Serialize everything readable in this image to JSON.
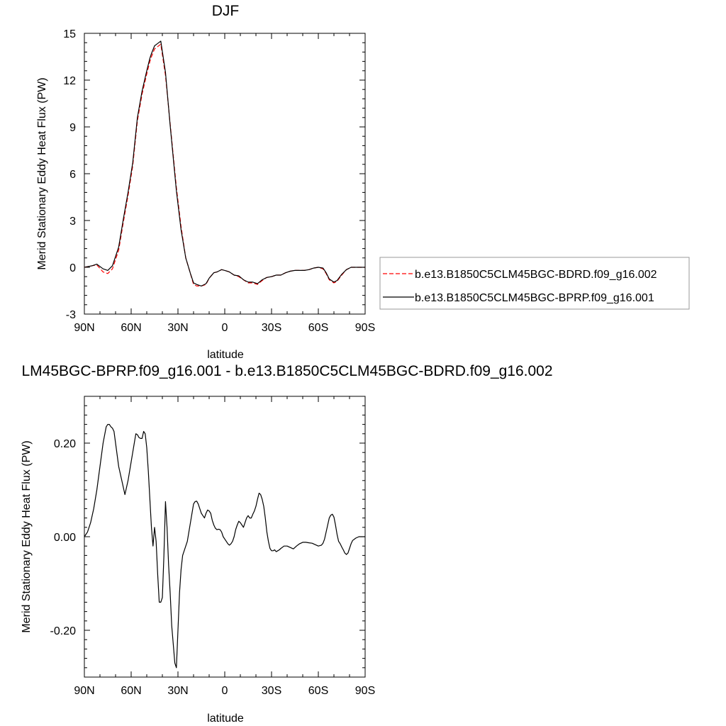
{
  "chart_data": [
    {
      "type": "line",
      "title": "DJF",
      "xlabel": "latitude",
      "ylabel": "Merid Stationary Eddy Heat Flux (PW)",
      "xlim": [
        90,
        -90
      ],
      "ylim": [
        -3,
        15
      ],
      "xticks": [
        90,
        60,
        30,
        0,
        -30,
        -60,
        -90
      ],
      "xtick_labels": [
        "90N",
        "60N",
        "30N",
        "0",
        "30S",
        "60S",
        "90S"
      ],
      "yticks": [
        -3,
        0,
        3,
        6,
        9,
        12,
        15
      ],
      "ytick_labels": [
        "-3",
        "0",
        "3",
        "6",
        "9",
        "12",
        "15"
      ],
      "legend_position": "right",
      "series": [
        {
          "name": "b.e13.B1850C5CLM45BGC-BDRD.f09_g16.002",
          "color": "#ff0000",
          "dash": "dashed",
          "x": [
            90,
            85,
            82,
            78,
            75,
            72,
            68,
            65,
            62,
            59,
            56,
            53,
            50,
            48,
            47,
            45,
            43,
            41,
            38,
            35,
            31,
            28,
            25,
            22,
            20,
            18,
            15,
            12,
            10,
            7,
            5,
            2,
            0,
            -3,
            -6,
            -9,
            -12,
            -15,
            -18,
            -21,
            -24,
            -27,
            -30,
            -33,
            -36,
            -39,
            -42,
            -45,
            -48,
            -51,
            -54,
            -57,
            -60,
            -63,
            -65,
            -67,
            -70,
            -72,
            -75,
            -78,
            -81,
            -85,
            -90
          ],
          "y": [
            0.0,
            0.1,
            0.15,
            -0.3,
            -0.4,
            -0.1,
            1.1,
            2.9,
            4.6,
            6.5,
            9.4,
            11.1,
            12.4,
            13.2,
            13.5,
            14.0,
            14.15,
            14.3,
            12.3,
            9.2,
            5.1,
            2.6,
            0.6,
            -0.4,
            -1.1,
            -1.2,
            -1.2,
            -1.1,
            -0.7,
            -0.35,
            -0.3,
            -0.15,
            -0.2,
            -0.3,
            -0.5,
            -0.6,
            -0.8,
            -1.0,
            -1.0,
            -1.1,
            -0.85,
            -0.65,
            -0.6,
            -0.5,
            -0.5,
            -0.35,
            -0.25,
            -0.2,
            -0.2,
            -0.2,
            -0.15,
            -0.05,
            0.0,
            -0.1,
            -0.4,
            -0.8,
            -1.0,
            -0.9,
            -0.5,
            -0.15,
            0.0,
            0.0,
            0.0
          ]
        },
        {
          "name": "b.e13.B1850C5CLM45BGC-BPRP.f09_g16.001",
          "color": "#000000",
          "dash": "solid",
          "x": [
            90,
            85,
            82,
            78,
            75,
            72,
            68,
            65,
            62,
            59,
            56,
            53,
            50,
            48,
            47,
            45,
            43,
            41,
            38,
            35,
            31,
            28,
            25,
            22,
            20,
            18,
            15,
            12,
            10,
            7,
            5,
            2,
            0,
            -3,
            -6,
            -9,
            -12,
            -15,
            -18,
            -21,
            -24,
            -27,
            -30,
            -33,
            -36,
            -39,
            -42,
            -45,
            -48,
            -51,
            -54,
            -57,
            -60,
            -63,
            -65,
            -67,
            -70,
            -72,
            -75,
            -78,
            -81,
            -85,
            -90
          ],
          "y": [
            0.0,
            0.1,
            0.2,
            -0.1,
            -0.2,
            0.1,
            1.3,
            3.1,
            4.8,
            6.7,
            9.6,
            11.3,
            12.6,
            13.4,
            13.7,
            14.2,
            14.35,
            14.5,
            12.5,
            9.1,
            4.9,
            2.4,
            0.6,
            -0.4,
            -1.0,
            -1.1,
            -1.2,
            -1.05,
            -0.7,
            -0.35,
            -0.3,
            -0.15,
            -0.2,
            -0.3,
            -0.5,
            -0.55,
            -0.8,
            -0.95,
            -0.95,
            -1.05,
            -0.8,
            -0.65,
            -0.6,
            -0.5,
            -0.5,
            -0.35,
            -0.25,
            -0.2,
            -0.2,
            -0.2,
            -0.15,
            -0.05,
            0.0,
            -0.05,
            -0.35,
            -0.75,
            -0.95,
            -0.85,
            -0.45,
            -0.15,
            0.0,
            0.0,
            0.0
          ]
        }
      ]
    },
    {
      "type": "line",
      "title": "LM45BGC-BPRP.f09_g16.001 - b.e13.B1850C5CLM45BGC-BDRD.f09_g16.002",
      "xlabel": "latitude",
      "ylabel": "Merid Stationary Eddy Heat Flux (PW)",
      "xlim": [
        90,
        -90
      ],
      "ylim": [
        -0.3,
        0.3
      ],
      "xticks": [
        90,
        60,
        30,
        0,
        -30,
        -60,
        -90
      ],
      "xtick_labels": [
        "90N",
        "60N",
        "30N",
        "0",
        "30S",
        "60S",
        "90S"
      ],
      "yticks": [
        -0.2,
        0.0,
        0.2
      ],
      "ytick_labels": [
        "-0.20",
        "0.00",
        "0.20"
      ],
      "series": [
        {
          "color": "#000000",
          "dash": "solid",
          "x": [
            90,
            88,
            86,
            84,
            82,
            80,
            78,
            76,
            75,
            74,
            73,
            72,
            71,
            70,
            69,
            68,
            66,
            64,
            62,
            61,
            60,
            59,
            58,
            57,
            56,
            55,
            54,
            53,
            52,
            51,
            50,
            49,
            48,
            47,
            46,
            45,
            44,
            43,
            42,
            41,
            40,
            39,
            38,
            37,
            36,
            35,
            34,
            33,
            32,
            31,
            30,
            29,
            28,
            27,
            26,
            25,
            24,
            23,
            22,
            21,
            20,
            19,
            18,
            17,
            16,
            15,
            14,
            13,
            12,
            11,
            10,
            9,
            8,
            7,
            6,
            5,
            4,
            3,
            2,
            1,
            0,
            -1,
            -2,
            -3,
            -4,
            -5,
            -6,
            -7,
            -8,
            -9,
            -10,
            -11,
            -12,
            -13,
            -14,
            -15,
            -16,
            -17,
            -18,
            -19,
            -20,
            -21,
            -22,
            -23,
            -24,
            -25,
            -26,
            -27,
            -28,
            -29,
            -30,
            -31,
            -32,
            -33,
            -34,
            -35,
            -36,
            -38,
            -40,
            -42,
            -44,
            -46,
            -48,
            -50,
            -52,
            -54,
            -56,
            -58,
            -60,
            -62,
            -63,
            -64,
            -65,
            -66,
            -67,
            -68,
            -69,
            -70,
            -71,
            -72,
            -73,
            -74,
            -75,
            -76,
            -77,
            -78,
            -79,
            -80,
            -81,
            -82,
            -84,
            -86,
            -88,
            -90
          ],
          "y": [
            0.0,
            0.01,
            0.03,
            0.06,
            0.1,
            0.15,
            0.2,
            0.235,
            0.24,
            0.24,
            0.235,
            0.232,
            0.225,
            0.2,
            0.175,
            0.15,
            0.12,
            0.09,
            0.12,
            0.14,
            0.16,
            0.18,
            0.2,
            0.22,
            0.218,
            0.212,
            0.21,
            0.21,
            0.225,
            0.22,
            0.19,
            0.14,
            0.08,
            0.02,
            -0.02,
            0.02,
            -0.01,
            -0.08,
            -0.14,
            -0.14,
            -0.13,
            -0.04,
            0.075,
            0.02,
            -0.06,
            -0.12,
            -0.19,
            -0.23,
            -0.27,
            -0.28,
            -0.2,
            -0.12,
            -0.07,
            -0.04,
            -0.03,
            -0.02,
            -0.01,
            0.01,
            0.03,
            0.05,
            0.07,
            0.075,
            0.076,
            0.07,
            0.06,
            0.05,
            0.045,
            0.04,
            0.05,
            0.057,
            0.055,
            0.05,
            0.035,
            0.025,
            0.018,
            0.015,
            0.016,
            0.015,
            0.01,
            0.0,
            -0.005,
            -0.01,
            -0.015,
            -0.018,
            -0.015,
            -0.01,
            0.0,
            0.015,
            0.025,
            0.033,
            0.03,
            0.025,
            0.02,
            0.03,
            0.04,
            0.045,
            0.04,
            0.04,
            0.048,
            0.055,
            0.065,
            0.08,
            0.093,
            0.09,
            0.08,
            0.065,
            0.04,
            0.01,
            -0.01,
            -0.025,
            -0.03,
            -0.03,
            -0.028,
            -0.032,
            -0.03,
            -0.028,
            -0.025,
            -0.02,
            -0.02,
            -0.023,
            -0.026,
            -0.02,
            -0.015,
            -0.012,
            -0.012,
            -0.013,
            -0.014,
            -0.017,
            -0.02,
            -0.018,
            -0.014,
            -0.005,
            0.01,
            0.025,
            0.04,
            0.046,
            0.048,
            0.042,
            0.025,
            0.005,
            -0.01,
            -0.015,
            -0.022,
            -0.028,
            -0.035,
            -0.038,
            -0.035,
            -0.025,
            -0.015,
            -0.008,
            -0.003,
            0.0,
            0.0,
            0.0
          ]
        }
      ]
    }
  ]
}
